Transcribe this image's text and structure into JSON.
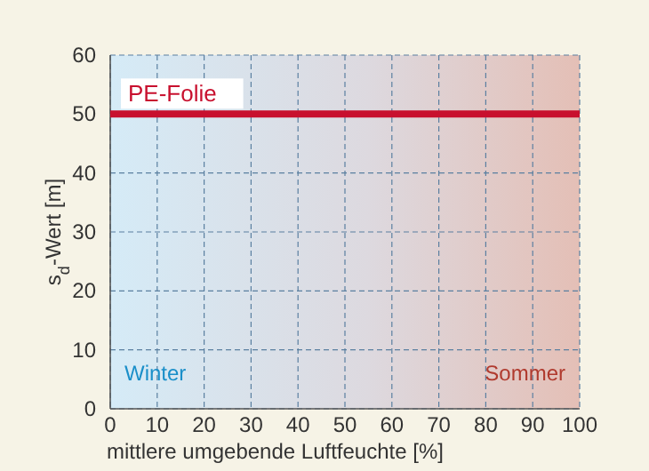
{
  "chart_data": {
    "type": "line",
    "xlabel": "mittlere umgebende Luftfeuchte [%]",
    "ylabel": "s$_{d}$-Wert [m]",
    "series": [
      {
        "name": "PE-Folie",
        "color": "#c8102e",
        "x": [
          0,
          100
        ],
        "values": [
          50,
          50
        ]
      }
    ],
    "xlim": [
      0,
      100
    ],
    "xticks": [
      0,
      10,
      20,
      30,
      40,
      50,
      60,
      70,
      80,
      90,
      100
    ],
    "ylim": [
      0,
      60
    ],
    "yticks": [
      0,
      10,
      20,
      30,
      40,
      50,
      60
    ],
    "grid": true,
    "line_style": "solid",
    "annotations": [
      "Winter",
      "Sommer"
    ]
  }
}
